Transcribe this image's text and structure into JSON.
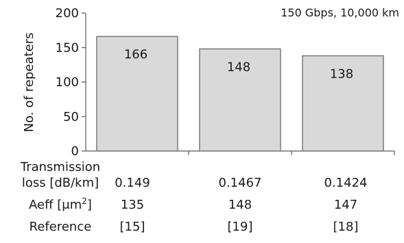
{
  "chart_data": {
    "type": "bar",
    "annotation": "150 Gbps, 10,000 km",
    "ylabel": "No. of repeaters",
    "ylim": [
      0,
      200
    ],
    "yticks": [
      0,
      50,
      100,
      150,
      200
    ],
    "grid": false,
    "categories": [
      "",
      "",
      ""
    ],
    "values": [
      166,
      148,
      138
    ],
    "data_labels": [
      "166",
      "148",
      "138"
    ],
    "bar_color": "#d9d9d9",
    "bar_edge_color": "#808080"
  },
  "table": {
    "rows": [
      {
        "label_lines": [
          "Transmission",
          "loss [dB/km]"
        ],
        "cells": [
          "0.149",
          "0.1467",
          "0.1424"
        ]
      },
      {
        "label_main": "Aeff [μm",
        "label_sup": "2",
        "label_end": "]",
        "cells": [
          "135",
          "148",
          "147"
        ]
      },
      {
        "label_lines": [
          "Reference"
        ],
        "cells": [
          "[15]",
          "[19]",
          "[18]"
        ]
      }
    ]
  }
}
